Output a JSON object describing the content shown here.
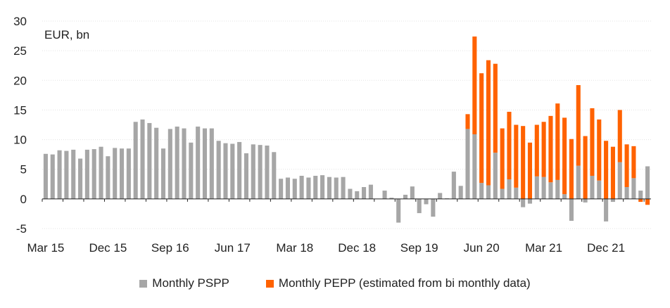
{
  "chart_data": {
    "type": "bar",
    "stacked": true,
    "unit_label": "EUR, bn",
    "ylim": [
      -5,
      30
    ],
    "yticks": [
      -5,
      0,
      5,
      10,
      15,
      20,
      25,
      30
    ],
    "x_tick_labels": [
      "Mar 15",
      "Dec 15",
      "Sep 16",
      "Jun 17",
      "Mar 18",
      "Dec 18",
      "Sep 19",
      "Jun 20",
      "Mar 21",
      "Dec 21"
    ],
    "x_tick_every_n_months": 9,
    "start_month": "Mar 15",
    "legend_position": "bottom-center",
    "series": [
      {
        "name": "Monthly PSPP",
        "color": "#a6a6a6",
        "values": [
          7.6,
          7.5,
          8.2,
          8.1,
          8.3,
          6.8,
          8.3,
          8.4,
          8.8,
          7.2,
          8.6,
          8.5,
          8.5,
          13.0,
          13.4,
          12.8,
          12.0,
          8.5,
          11.8,
          12.2,
          11.9,
          9.5,
          12.2,
          11.9,
          11.9,
          9.8,
          9.4,
          9.3,
          9.6,
          7.7,
          9.2,
          9.1,
          9.0,
          7.9,
          3.4,
          3.6,
          3.4,
          3.9,
          3.6,
          3.9,
          4.0,
          3.7,
          3.6,
          3.7,
          1.7,
          1.3,
          2.0,
          2.4,
          0.0,
          1.4,
          0.2,
          -4.0,
          0.7,
          2.1,
          -2.4,
          -0.9,
          -3.0,
          1.0,
          0.1,
          4.6,
          2.2,
          11.8,
          10.9,
          2.7,
          2.3,
          7.8,
          1.7,
          3.3,
          1.9,
          -1.4,
          -0.8,
          3.8,
          3.7,
          2.8,
          3.2,
          0.8,
          -3.7,
          5.6,
          -0.6,
          3.9,
          3.1,
          -3.8,
          -0.5,
          6.2,
          2.0,
          3.5,
          1.4,
          5.5
        ],
        "positive_pepp": [
          0,
          0,
          0,
          0,
          0,
          0,
          0,
          0,
          0,
          0,
          0,
          0,
          0,
          0,
          0,
          0,
          0,
          0,
          0,
          0,
          0,
          0,
          0,
          0,
          0,
          0,
          0,
          0,
          0,
          0,
          0,
          0,
          0,
          0,
          0,
          0,
          0,
          0,
          0,
          0,
          0,
          0,
          0,
          0,
          0,
          0,
          0,
          0,
          0,
          0,
          0,
          0,
          0,
          0,
          0,
          0,
          0,
          0,
          0,
          0,
          0,
          0,
          0,
          0,
          0,
          0,
          0,
          0,
          0,
          0,
          0,
          0,
          0,
          0,
          0,
          0,
          0,
          0,
          0,
          0,
          0,
          0,
          0,
          0,
          0,
          0,
          0,
          0
        ]
      },
      {
        "name": "Monthly PEPP (estimated from bi monthly data)",
        "color": "#ff6200",
        "values": [
          0,
          0,
          0,
          0,
          0,
          0,
          0,
          0,
          0,
          0,
          0,
          0,
          0,
          0,
          0,
          0,
          0,
          0,
          0,
          0,
          0,
          0,
          0,
          0,
          0,
          0,
          0,
          0,
          0,
          0,
          0,
          0,
          0,
          0,
          0,
          0,
          0,
          0,
          0,
          0,
          0,
          0,
          0,
          0,
          0,
          0,
          0,
          0,
          0,
          0,
          0,
          0,
          0,
          0,
          0,
          0,
          0,
          0,
          0,
          0,
          0,
          2.5,
          16.5,
          18.5,
          21.1,
          15.0,
          10.2,
          11.4,
          10.6,
          12.3,
          9.5,
          8.7,
          9.3,
          11.2,
          12.9,
          12.9,
          10.1,
          13.6,
          10.6,
          11.4,
          10.3,
          9.8,
          8.8,
          8.8,
          7.2,
          5.4,
          -0.5,
          -1.0
        ]
      }
    ]
  },
  "legend": {
    "items": [
      {
        "label": "Monthly PSPP",
        "color": "#a6a6a6"
      },
      {
        "label": "Monthly PEPP (estimated from bi monthly data)",
        "color": "#ff6200"
      }
    ]
  }
}
